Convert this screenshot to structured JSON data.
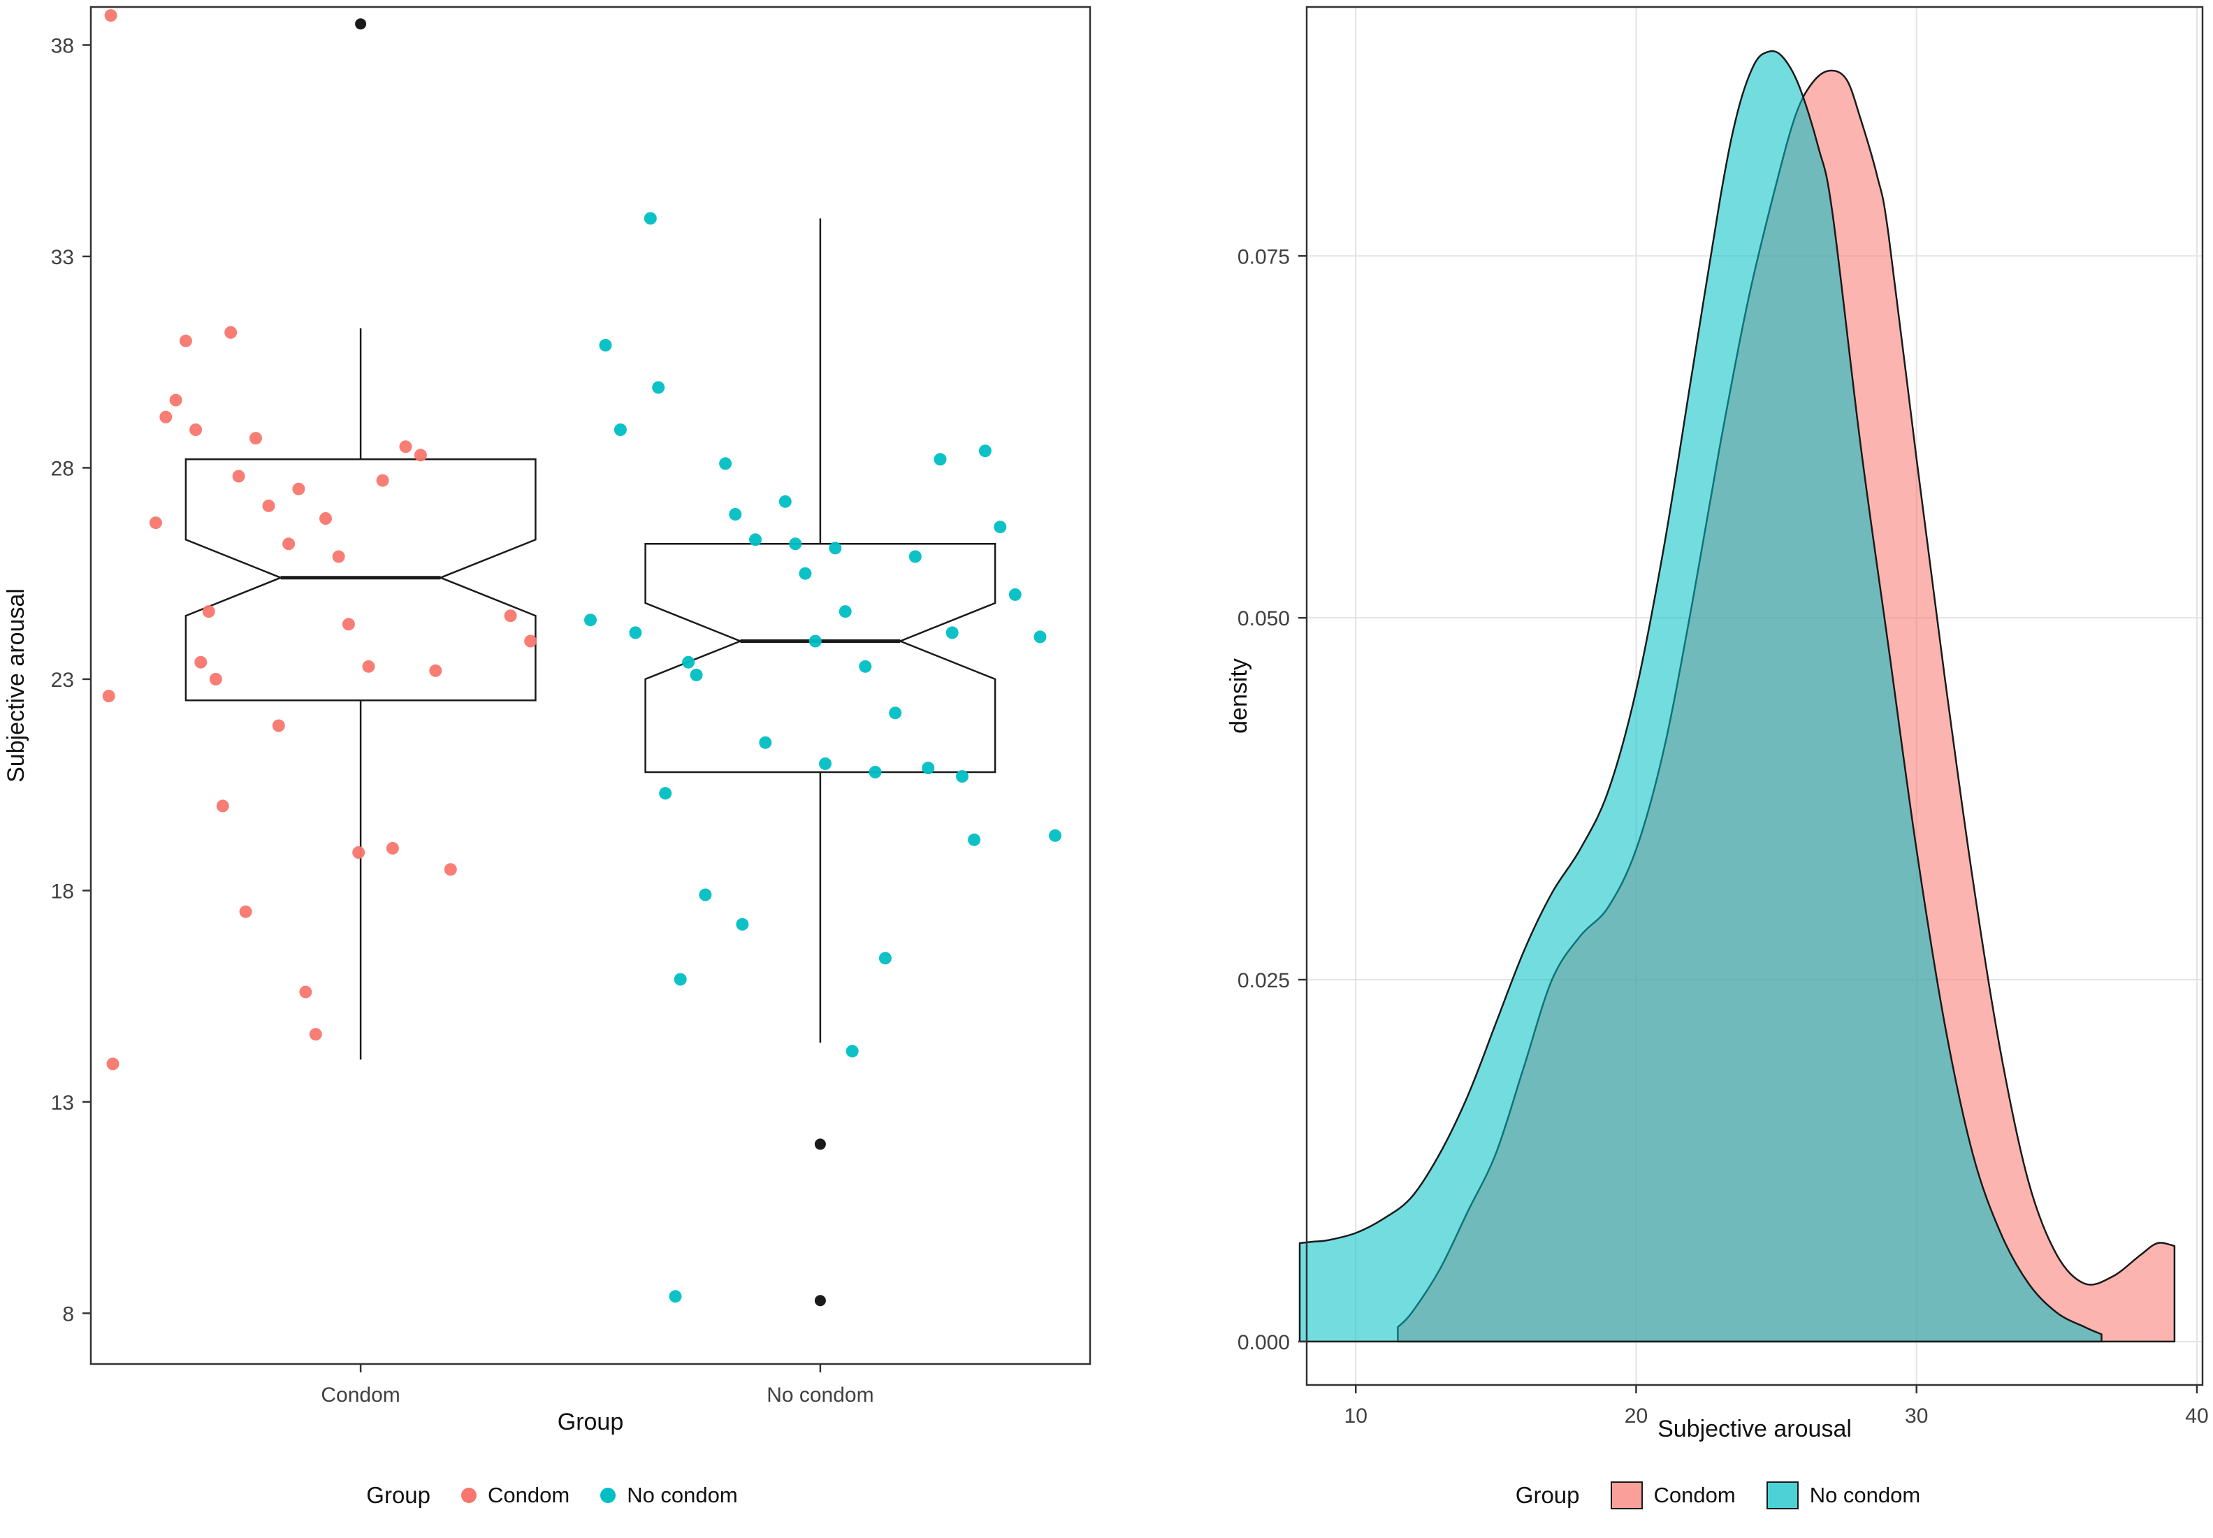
{
  "colors": {
    "condom": "#F8766D",
    "no_condom": "#00BFC4",
    "outlier": "#1a1a1a",
    "grid": "#e3e3e3",
    "axis_text": "#404040",
    "panel_border": "#333333"
  },
  "chart_data": [
    {
      "type": "boxplot",
      "subtype": "notched-boxplot-with-jitter",
      "xlabel": "Group",
      "ylabel": "Subjective arousal",
      "categories": [
        "Condom",
        "No condom"
      ],
      "y_tick_values": [
        8,
        13,
        18,
        23,
        28,
        33,
        38
      ],
      "y_tick_labels": [
        "8",
        "13",
        "18",
        "23",
        "28",
        "33",
        "38"
      ],
      "ylim": [
        6.8,
        38.9
      ],
      "legend": {
        "title": "Group",
        "items": [
          {
            "label": "Condom"
          },
          {
            "label": "No condom"
          }
        ]
      },
      "groups": [
        {
          "name": "Condom",
          "color": "#F8766D",
          "center_frac": 0.27,
          "box": {
            "whisker_low": 14.0,
            "q1": 22.5,
            "median": 25.4,
            "q3": 28.2,
            "whisker_high": 31.3,
            "notch_low": 24.5,
            "notch_high": 26.3
          },
          "outliers": [
            38.5
          ],
          "points": [
            [
              0.02,
              38.7
            ],
            [
              0.018,
              22.6
            ],
            [
              0.022,
              13.9
            ],
            [
              0.065,
              26.7
            ],
            [
              0.075,
              29.2
            ],
            [
              0.085,
              29.6
            ],
            [
              0.095,
              31.0
            ],
            [
              0.105,
              28.9
            ],
            [
              0.11,
              23.4
            ],
            [
              0.118,
              24.6
            ],
            [
              0.125,
              23.0
            ],
            [
              0.132,
              20.0
            ],
            [
              0.14,
              31.2
            ],
            [
              0.148,
              27.8
            ],
            [
              0.155,
              17.5
            ],
            [
              0.165,
              28.7
            ],
            [
              0.178,
              27.1
            ],
            [
              0.188,
              21.9
            ],
            [
              0.198,
              26.2
            ],
            [
              0.208,
              27.5
            ],
            [
              0.215,
              15.6
            ],
            [
              0.225,
              14.6
            ],
            [
              0.235,
              26.8
            ],
            [
              0.248,
              25.9
            ],
            [
              0.258,
              24.3
            ],
            [
              0.268,
              18.9
            ],
            [
              0.278,
              23.3
            ],
            [
              0.292,
              27.7
            ],
            [
              0.302,
              19.0
            ],
            [
              0.315,
              28.5
            ],
            [
              0.33,
              28.3
            ],
            [
              0.345,
              23.2
            ],
            [
              0.36,
              18.5
            ],
            [
              0.42,
              24.5
            ],
            [
              0.44,
              23.9
            ]
          ]
        },
        {
          "name": "No condom",
          "color": "#00BFC4",
          "center_frac": 0.73,
          "box": {
            "whisker_low": 14.4,
            "q1": 20.8,
            "median": 23.9,
            "q3": 26.2,
            "whisker_high": 33.9,
            "notch_low": 23.0,
            "notch_high": 24.8
          },
          "outliers": [
            12.0,
            8.3
          ],
          "points": [
            [
              0.5,
              24.4
            ],
            [
              0.515,
              30.9
            ],
            [
              0.53,
              28.9
            ],
            [
              0.545,
              24.1
            ],
            [
              0.56,
              33.9
            ],
            [
              0.568,
              29.9
            ],
            [
              0.575,
              20.3
            ],
            [
              0.585,
              8.4
            ],
            [
              0.59,
              15.9
            ],
            [
              0.598,
              23.4
            ],
            [
              0.606,
              23.1
            ],
            [
              0.615,
              17.9
            ],
            [
              0.635,
              28.1
            ],
            [
              0.645,
              26.9
            ],
            [
              0.652,
              17.2
            ],
            [
              0.665,
              26.3
            ],
            [
              0.675,
              21.5
            ],
            [
              0.695,
              27.2
            ],
            [
              0.705,
              26.2
            ],
            [
              0.715,
              25.5
            ],
            [
              0.725,
              23.9
            ],
            [
              0.735,
              21.0
            ],
            [
              0.745,
              26.1
            ],
            [
              0.755,
              24.6
            ],
            [
              0.762,
              14.2
            ],
            [
              0.775,
              23.3
            ],
            [
              0.785,
              20.8
            ],
            [
              0.795,
              16.4
            ],
            [
              0.805,
              22.2
            ],
            [
              0.825,
              25.9
            ],
            [
              0.838,
              20.9
            ],
            [
              0.85,
              28.2
            ],
            [
              0.862,
              24.1
            ],
            [
              0.872,
              20.7
            ],
            [
              0.884,
              19.2
            ],
            [
              0.895,
              28.4
            ],
            [
              0.91,
              26.6
            ],
            [
              0.925,
              25.0
            ],
            [
              0.95,
              24.0
            ],
            [
              0.965,
              19.3
            ]
          ]
        }
      ]
    },
    {
      "type": "area",
      "subtype": "overlapping-density",
      "xlabel": "Subjective arousal",
      "ylabel": "density",
      "x_tick_values": [
        10,
        20,
        30,
        40
      ],
      "x_tick_labels": [
        "10",
        "20",
        "30",
        "40"
      ],
      "y_tick_values": [
        0,
        0.025,
        0.05,
        0.075
      ],
      "y_tick_labels": [
        "0.000",
        "0.025",
        "0.050",
        "0.075"
      ],
      "xlim": [
        8.25,
        40.2
      ],
      "ylim": [
        -0.003,
        0.0922
      ],
      "grid": "major",
      "legend": {
        "title": "Group",
        "items": [
          {
            "label": "Condom"
          },
          {
            "label": "No condom"
          }
        ]
      },
      "series": [
        {
          "name": "Condom",
          "color": "#F8766D",
          "x": [
            11.5,
            12,
            13,
            14,
            15,
            16,
            17,
            18,
            19,
            20,
            21,
            22,
            23,
            24,
            25,
            25.7,
            26.3,
            26.9,
            27.5,
            28,
            28.6,
            29,
            30,
            31,
            32,
            33,
            34,
            35,
            36,
            37,
            38,
            38.6,
            39.2
          ],
          "y": [
            0.001,
            0.002,
            0.005,
            0.009,
            0.013,
            0.019,
            0.025,
            0.028,
            0.03,
            0.034,
            0.041,
            0.051,
            0.062,
            0.072,
            0.08,
            0.0848,
            0.087,
            0.0878,
            0.0872,
            0.0845,
            0.0805,
            0.0765,
            0.061,
            0.046,
            0.032,
            0.02,
            0.011,
            0.006,
            0.004,
            0.0045,
            0.006,
            0.0068,
            0.0066
          ]
        },
        {
          "name": "No condom",
          "color": "#00BFC4",
          "x": [
            8.0,
            8.5,
            9,
            10,
            11,
            12,
            13,
            14,
            15,
            16,
            17,
            18,
            19,
            20,
            21,
            22,
            23,
            23.6,
            24.2,
            24.7,
            25.2,
            25.8,
            26.5,
            27,
            28,
            29,
            30,
            31,
            32,
            33,
            34,
            35,
            36,
            36.6
          ],
          "y": [
            0.0068,
            0.0069,
            0.007,
            0.0075,
            0.0085,
            0.01,
            0.013,
            0.017,
            0.022,
            0.027,
            0.031,
            0.034,
            0.038,
            0.045,
            0.055,
            0.067,
            0.079,
            0.0848,
            0.0882,
            0.0891,
            0.0888,
            0.0868,
            0.0825,
            0.078,
            0.062,
            0.048,
            0.034,
            0.022,
            0.013,
            0.0075,
            0.004,
            0.002,
            0.001,
            0.0005
          ]
        }
      ]
    }
  ]
}
